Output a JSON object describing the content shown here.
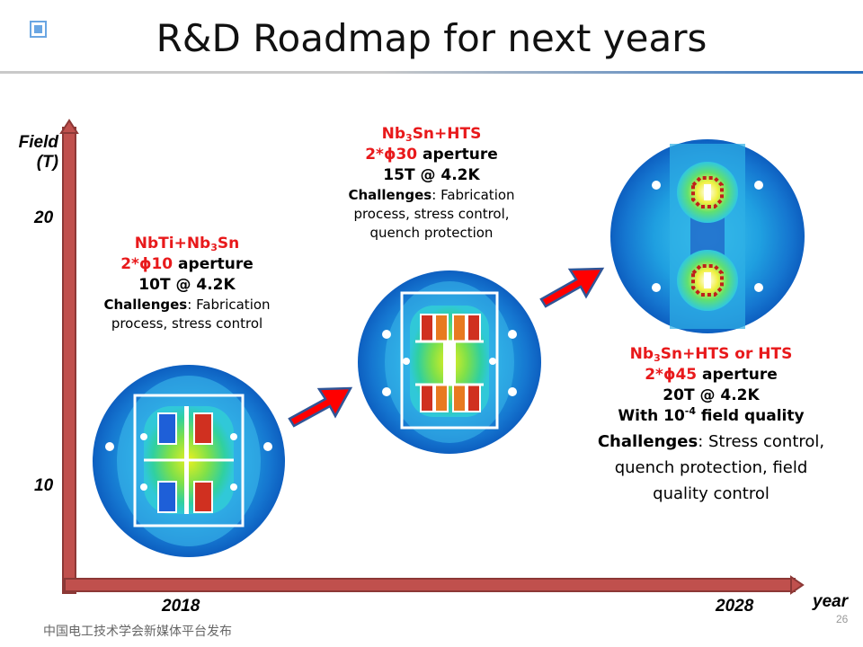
{
  "slide": {
    "title": "R&D Roadmap for next years",
    "footer": "中国电工技术学会新媒体平台发布",
    "page_number": "26"
  },
  "axes": {
    "y_label_line1": "Field",
    "y_label_line2": "(T)",
    "y_tick_20": "20",
    "y_tick_10": "10",
    "x_tick_2018": "2018",
    "x_tick_2028": "2028",
    "x_label": "year"
  },
  "stage1": {
    "mat_a": "NbTi+Nb",
    "mat_sub": "3",
    "mat_b": "Sn",
    "ap_red": "2*ϕ10",
    "ap_black": " aperture",
    "field": "10T @ 4.2K",
    "ch_label": "Challenges",
    "ch_text1": ": Fabrication",
    "ch_text2": "process, stress control"
  },
  "stage2": {
    "mat_a": "Nb",
    "mat_sub": "3",
    "mat_b": "Sn+HTS",
    "ap_red": "2*ϕ30",
    "ap_black": " aperture",
    "field": "15T @ 4.2K",
    "ch_label": "Challenges",
    "ch_text1": ": Fabrication",
    "ch_text2": "process, stress control,",
    "ch_text3": "quench protection"
  },
  "stage3": {
    "mat_a": "Nb",
    "mat_sub": "3",
    "mat_b": "Sn+HTS or HTS",
    "ap_red": "2*ϕ45",
    "ap_black": " aperture",
    "field": "20T @ 4.2K",
    "fq_a": "With 10",
    "fq_sup": "-4",
    "fq_b": " field quality",
    "ch_label": "Challenges",
    "ch_text1": ": Stress control,",
    "ch_text2": "quench protection, field",
    "ch_text3": "quality control"
  },
  "colors": {
    "axis_fill": "#c0504d",
    "axis_stroke": "#8c3836",
    "arrow_fill": "#ff0000",
    "arrow_stroke": "#2f5597",
    "accent_red": "#e8191b"
  }
}
